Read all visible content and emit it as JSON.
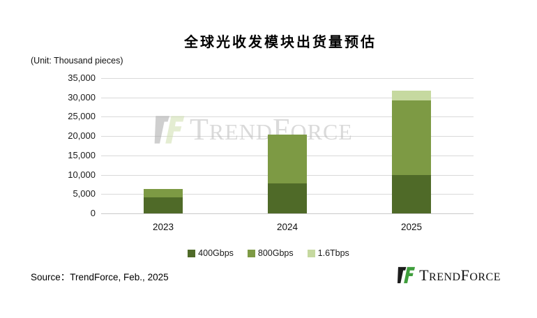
{
  "title": "全球光收发模块出货量预估",
  "unit_label": "(Unit: Thousand pieces)",
  "source": "Source：TrendForce,  Feb.,  2025",
  "watermark": {
    "brand_segments": [
      "T",
      "REND",
      "F",
      "ORCE"
    ]
  },
  "footer_logo": {
    "brand_segments": [
      "T",
      "REND",
      "F",
      "ORCE"
    ]
  },
  "colors": {
    "series_400g": "#4f6a28",
    "series_800g": "#7d9a44",
    "series_16t": "#c6d9a0",
    "gridline": "#d9d9d9",
    "logo_black": "#1c1c1c",
    "logo_green": "#3f9e3c",
    "watermark_gray": "#a8a8a8",
    "watermark_green": "#cfe0ae"
  },
  "chart_data": {
    "type": "bar",
    "stacked": true,
    "title": "全球光收发模块出货量预估",
    "ylabel": "(Unit: Thousand pieces)",
    "categories": [
      "2023",
      "2024",
      "2025"
    ],
    "series": [
      {
        "name": "400Gbps",
        "color": "#4f6a28",
        "values": [
          4100,
          7800,
          10000
        ]
      },
      {
        "name": "800Gbps",
        "color": "#7d9a44",
        "values": [
          2300,
          12500,
          19300
        ]
      },
      {
        "name": "1.6Tbps",
        "color": "#c6d9a0",
        "values": [
          0,
          0,
          2400
        ]
      }
    ],
    "totals": [
      6400,
      20300,
      31700
    ],
    "ylim": [
      0,
      35000
    ],
    "ytick_step": 5000,
    "grid": true,
    "legend_position": "bottom"
  }
}
